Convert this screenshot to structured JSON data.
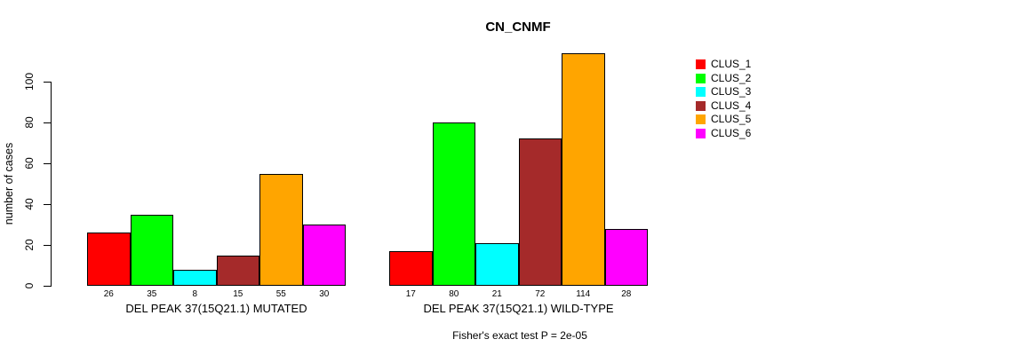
{
  "chart_data": {
    "type": "bar",
    "title": "CN_CNMF",
    "ylabel": "number of cases",
    "xlabel": "",
    "yticks": [
      0,
      20,
      40,
      60,
      80,
      100
    ],
    "ylim": [
      0,
      115
    ],
    "grid": false,
    "legend_position": "right-outside",
    "annotation": "Fisher's exact test P = 2e-05",
    "bar_value_labels_shown": true,
    "series": [
      {
        "name": "CLUS_1",
        "color": "#FF0000"
      },
      {
        "name": "CLUS_2",
        "color": "#00FF00"
      },
      {
        "name": "CLUS_3",
        "color": "#00FFFF"
      },
      {
        "name": "CLUS_4",
        "color": "#A52A2A"
      },
      {
        "name": "CLUS_5",
        "color": "#FFA500"
      },
      {
        "name": "CLUS_6",
        "color": "#FF00FF"
      }
    ],
    "groups": [
      {
        "label": "DEL PEAK 37(15Q21.1) MUTATED",
        "values": [
          26,
          35,
          8,
          15,
          55,
          30
        ]
      },
      {
        "label": "DEL PEAK 37(15Q21.1) WILD-TYPE",
        "values": [
          17,
          80,
          21,
          72,
          114,
          28
        ]
      }
    ]
  }
}
